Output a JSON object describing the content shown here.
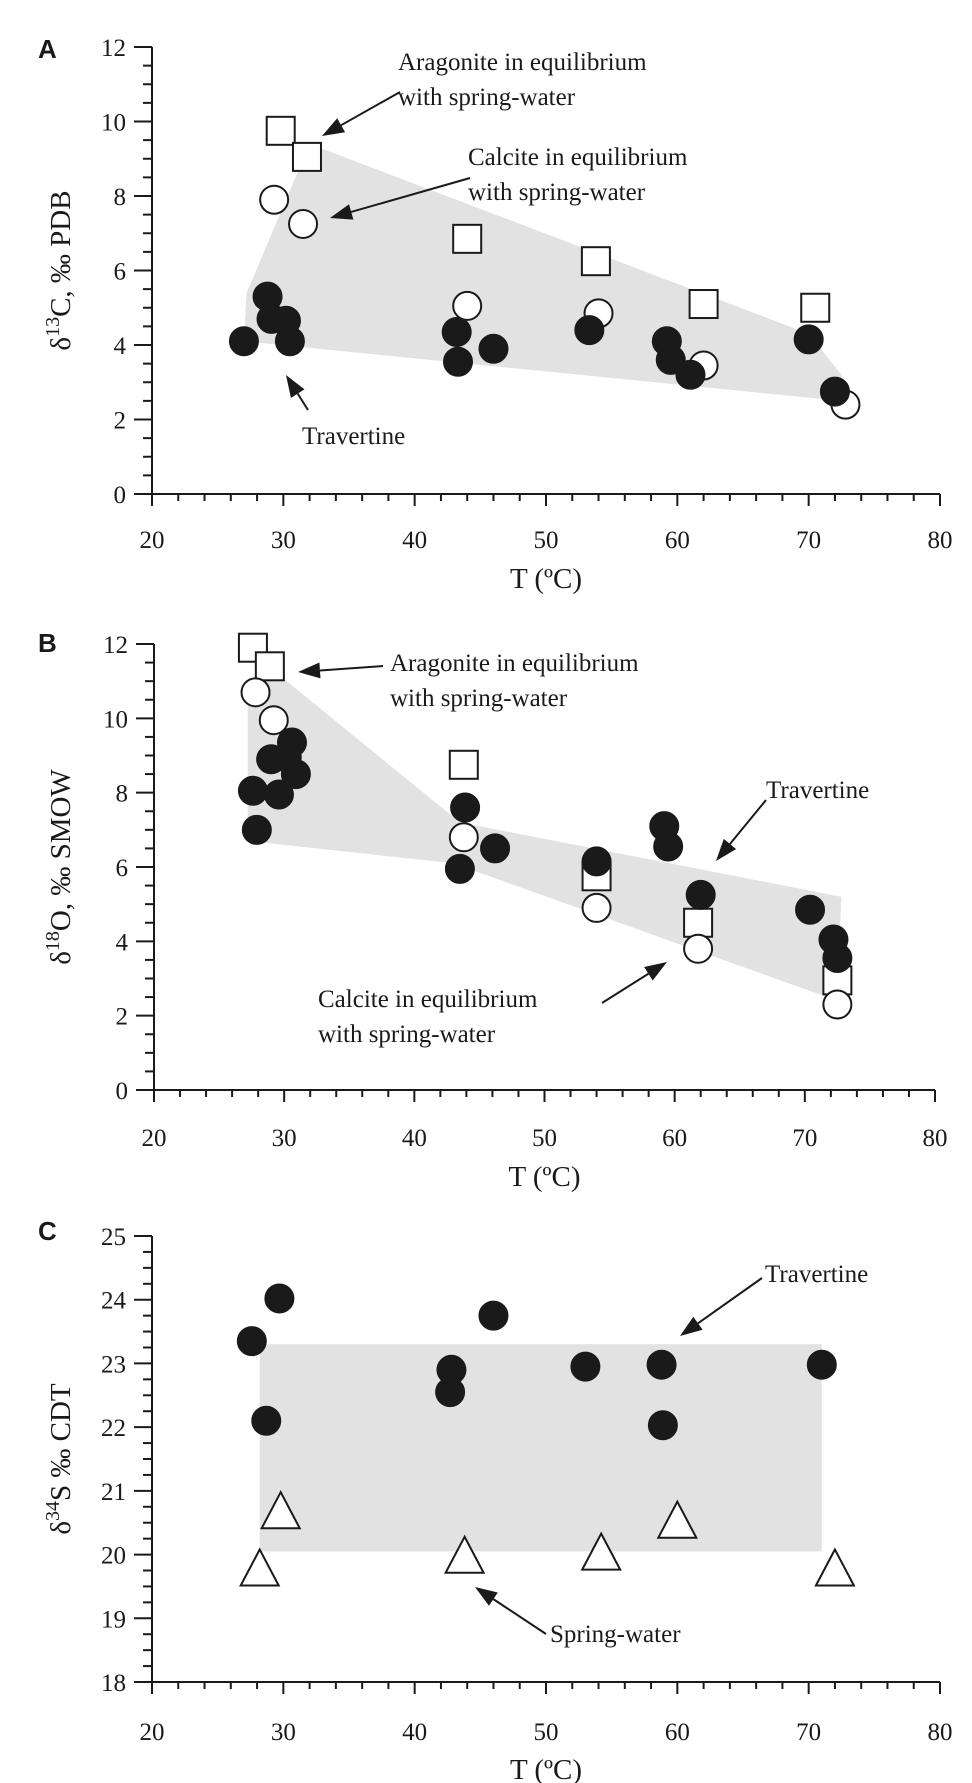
{
  "chart_data": [
    {
      "type": "scatter",
      "panel": "A",
      "xlabel": "T (ºC)",
      "ylabel": {
        "pre": "δ",
        "sup": "13",
        "post": "C, ‰ PDB"
      },
      "xlim": [
        20,
        80
      ],
      "ylim": [
        0,
        12
      ],
      "xticks": [
        20,
        30,
        40,
        50,
        60,
        70,
        80
      ],
      "yticks": [
        0,
        2,
        4,
        6,
        8,
        10,
        12
      ],
      "grid": false,
      "series": [
        {
          "name": "Travertine",
          "marker": "filled-circle",
          "x": [
            27,
            28.8,
            29.1,
            30.2,
            30.5,
            43.2,
            43.3,
            46,
            53.3,
            59.2,
            59.5,
            61,
            70,
            72
          ],
          "y": [
            4.1,
            5.3,
            4.7,
            4.65,
            4.1,
            4.35,
            3.55,
            3.9,
            4.4,
            4.1,
            3.6,
            3.2,
            4.15,
            2.75
          ]
        },
        {
          "name": "Calcite in equilibrium with spring-water",
          "marker": "open-circle",
          "x": [
            29.3,
            31.5,
            44,
            54,
            62,
            72.8
          ],
          "y": [
            7.9,
            7.25,
            5.05,
            4.85,
            3.45,
            2.4
          ]
        },
        {
          "name": "Aragonite in equilibrium with spring-water",
          "marker": "open-square",
          "x": [
            29.8,
            31.8,
            44,
            53.8,
            62,
            70.5
          ],
          "y": [
            9.75,
            9.05,
            6.85,
            6.25,
            5.1,
            5.0
          ]
        }
      ],
      "envelope": {
        "x": [
          27.2,
          32,
          70,
          72.5,
          72.5,
          27
        ],
        "y": [
          5.4,
          9.4,
          4.3,
          3.2,
          2.5,
          4.1
        ]
      },
      "annotations": [
        {
          "lines": [
            "Aragonite in equilibrium",
            "with spring-water"
          ]
        },
        {
          "lines": [
            "Calcite in equilibrium",
            "with spring-water"
          ]
        },
        {
          "lines": [
            "Travertine"
          ]
        }
      ]
    },
    {
      "type": "scatter",
      "panel": "B",
      "xlabel": "T (ºC)",
      "ylabel": {
        "pre": "δ",
        "sup": "18",
        "post": "O, ‰ SMOW"
      },
      "xlim": [
        20,
        80
      ],
      "ylim": [
        0,
        12
      ],
      "xticks": [
        20,
        30,
        40,
        50,
        60,
        70,
        80
      ],
      "yticks": [
        0,
        2,
        4,
        6,
        8,
        10,
        12
      ],
      "grid": false,
      "series": [
        {
          "name": "Travertine",
          "marker": "filled-circle",
          "x": [
            27.6,
            27.9,
            29,
            29.6,
            30.2,
            30.6,
            30.9,
            43.5,
            43.9,
            46.2,
            54,
            59.2,
            59.5,
            62,
            70.4,
            72.2,
            72.5
          ],
          "y": [
            8.05,
            7.0,
            8.9,
            7.95,
            8.95,
            9.35,
            8.5,
            5.95,
            7.6,
            6.5,
            6.15,
            7.1,
            6.55,
            5.25,
            4.85,
            4.05,
            3.55
          ]
        },
        {
          "name": "Calcite in equilibrium with spring-water",
          "marker": "open-circle",
          "x": [
            27.8,
            29.2,
            43.8,
            54,
            61.8,
            72.5
          ],
          "y": [
            10.7,
            9.95,
            6.8,
            4.9,
            3.8,
            2.3
          ]
        },
        {
          "name": "Aragonite in equilibrium with spring-water",
          "marker": "open-square",
          "x": [
            27.6,
            28.9,
            43.8,
            54,
            61.8,
            72.5
          ],
          "y": [
            11.9,
            11.4,
            8.75,
            5.75,
            4.5,
            2.95
          ]
        }
      ],
      "envelope": {
        "x": [
          27.2,
          28.8,
          43.5,
          72.8,
          72.5,
          43,
          27.2
        ],
        "y": [
          10.9,
          11.4,
          7.2,
          5.2,
          2.4,
          6.1,
          6.7
        ]
      },
      "annotations": [
        {
          "lines": [
            "Aragonite in equilibrium",
            "with spring-water"
          ]
        },
        {
          "lines": [
            "Travertine"
          ]
        },
        {
          "lines": [
            "Calcite in equilibrium",
            "with spring-water"
          ]
        }
      ]
    },
    {
      "type": "scatter",
      "panel": "C",
      "xlabel": "T (ºC)",
      "ylabel": {
        "pre": "δ",
        "sup": "34",
        "post": "S ‰ CDT"
      },
      "xlim": [
        20,
        80
      ],
      "ylim": [
        18,
        25
      ],
      "xticks": [
        20,
        30,
        40,
        50,
        60,
        70,
        80
      ],
      "yticks": [
        18,
        19,
        20,
        21,
        22,
        23,
        24,
        25
      ],
      "grid": false,
      "series": [
        {
          "name": "Travertine",
          "marker": "filled-circle",
          "x": [
            27.6,
            28.7,
            29.7,
            42.7,
            42.8,
            46,
            53,
            58.8,
            58.9,
            71
          ],
          "y": [
            23.35,
            22.1,
            24.02,
            22.55,
            22.9,
            23.75,
            22.95,
            22.98,
            22.03,
            22.98
          ]
        },
        {
          "name": "Spring-water",
          "marker": "open-triangle",
          "x": [
            28.2,
            29.8,
            43.8,
            54.2,
            60,
            72
          ],
          "y": [
            19.75,
            20.65,
            19.95,
            20.0,
            20.5,
            19.75
          ]
        }
      ],
      "envelope": {
        "x": [
          28.2,
          71,
          71,
          28.2
        ],
        "y": [
          23.3,
          23.3,
          20.05,
          20.05
        ]
      },
      "annotations": [
        {
          "lines": [
            "Travertine"
          ]
        },
        {
          "lines": [
            "Spring-water"
          ]
        }
      ]
    }
  ]
}
